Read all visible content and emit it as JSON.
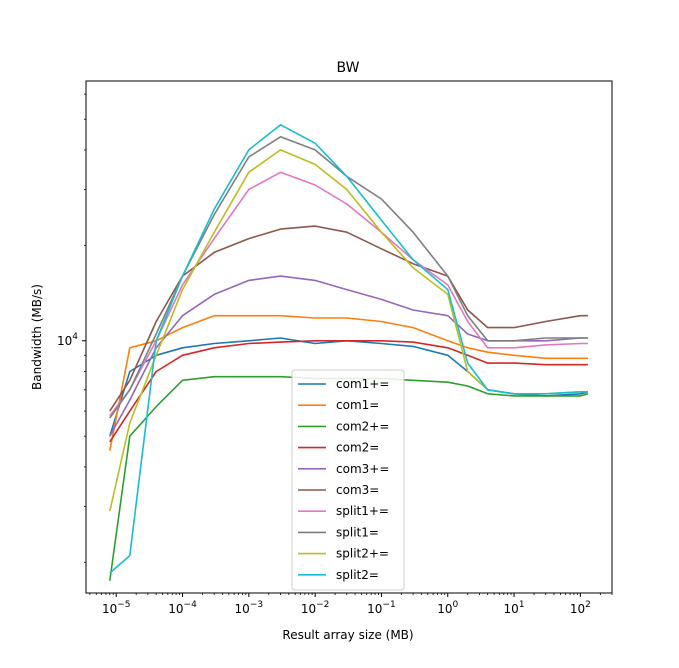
{
  "chart_data": {
    "type": "line",
    "title": "BW",
    "xlabel": "Result array size (MB)",
    "ylabel": "Bandwidth (MB/s)",
    "xscale": "log",
    "yscale": "log",
    "xlim": [
      3.5e-06,
      300
    ],
    "ylim": [
      1600,
      66000
    ],
    "x_ticks": [
      {
        "value": 1e-05,
        "base": "10",
        "exp": "−5"
      },
      {
        "value": 0.0001,
        "base": "10",
        "exp": "−4"
      },
      {
        "value": 0.001,
        "base": "10",
        "exp": "−3"
      },
      {
        "value": 0.01,
        "base": "10",
        "exp": "−2"
      },
      {
        "value": 0.1,
        "base": "10",
        "exp": "−1"
      },
      {
        "value": 1,
        "base": "10",
        "exp": "0"
      },
      {
        "value": 10,
        "base": "10",
        "exp": "1"
      },
      {
        "value": 100,
        "base": "10",
        "exp": "2"
      }
    ],
    "y_ticks": [
      {
        "value": 10000,
        "base": "10",
        "exp": "4"
      }
    ],
    "grid": false,
    "legend_position": "lower-center",
    "series": [
      {
        "name": "com1+=",
        "color": "#1f77b4",
        "x": [
          8e-06,
          1.6e-05,
          4e-05,
          0.0001,
          0.0003,
          0.001,
          0.003,
          0.01,
          0.03,
          0.1,
          0.3,
          1,
          2,
          4,
          10,
          30,
          100,
          130
        ],
        "y": [
          5000,
          8000,
          9000,
          9500,
          9800,
          10000,
          10200,
          9800,
          10000,
          9800,
          9600,
          9000,
          8000,
          7000,
          6800,
          6700,
          6800,
          6900
        ]
      },
      {
        "name": "com1=",
        "color": "#ff7f0e",
        "x": [
          8e-06,
          1.6e-05,
          4e-05,
          0.0001,
          0.0003,
          0.001,
          0.003,
          0.01,
          0.03,
          0.1,
          0.3,
          1,
          2,
          4,
          10,
          30,
          100,
          130
        ],
        "y": [
          4500,
          9500,
          10000,
          11000,
          12000,
          12000,
          12000,
          11800,
          11800,
          11500,
          11000,
          10000,
          9500,
          9200,
          9000,
          8800,
          8800,
          8800
        ]
      },
      {
        "name": "com2+=",
        "color": "#2ca02c",
        "x": [
          8e-06,
          1.6e-05,
          4e-05,
          0.0001,
          0.0003,
          0.001,
          0.003,
          0.01,
          0.03,
          0.1,
          0.3,
          1,
          2,
          4,
          10,
          30,
          100,
          130
        ],
        "y": [
          1750,
          5000,
          6200,
          7500,
          7700,
          7700,
          7700,
          7600,
          7600,
          7600,
          7500,
          7400,
          7200,
          6800,
          6700,
          6700,
          6700,
          6800
        ]
      },
      {
        "name": "com2=",
        "color": "#d62728",
        "x": [
          8e-06,
          1.6e-05,
          4e-05,
          0.0001,
          0.0003,
          0.001,
          0.003,
          0.01,
          0.03,
          0.1,
          0.3,
          1,
          2,
          4,
          10,
          30,
          100,
          130
        ],
        "y": [
          4800,
          6000,
          8000,
          9000,
          9500,
          9800,
          9900,
          10000,
          10000,
          10000,
          9900,
          9500,
          9000,
          8500,
          8500,
          8400,
          8400,
          8400
        ]
      },
      {
        "name": "com3+=",
        "color": "#9467bd",
        "x": [
          8e-06,
          1.6e-05,
          4e-05,
          0.0001,
          0.0003,
          0.001,
          0.003,
          0.01,
          0.03,
          0.1,
          0.3,
          1,
          2,
          4,
          10,
          30,
          100,
          130
        ],
        "y": [
          5000,
          6500,
          9500,
          12000,
          14000,
          15500,
          16000,
          15500,
          14500,
          13500,
          12500,
          12000,
          10500,
          10000,
          10000,
          10000,
          10200,
          10200
        ]
      },
      {
        "name": "com3=",
        "color": "#8c564b",
        "x": [
          8e-06,
          1.6e-05,
          4e-05,
          0.0001,
          0.0003,
          0.001,
          0.003,
          0.01,
          0.03,
          0.1,
          0.3,
          1,
          2,
          4,
          10,
          30,
          100,
          130
        ],
        "y": [
          6000,
          7500,
          11500,
          16000,
          19000,
          21000,
          22500,
          23000,
          22000,
          19500,
          17500,
          16000,
          12500,
          11000,
          11000,
          11500,
          12000,
          12000
        ]
      },
      {
        "name": "split1+=",
        "color": "#e377c2",
        "x": [
          8e-06,
          1.6e-05,
          4e-05,
          0.0001,
          0.0003,
          0.001,
          0.003,
          0.01,
          0.03,
          0.1,
          0.3,
          1,
          2,
          4,
          10,
          30,
          100,
          130
        ],
        "y": [
          5800,
          7000,
          10000,
          15000,
          21000,
          30000,
          34000,
          31000,
          27000,
          22000,
          18000,
          15000,
          11500,
          9500,
          9500,
          9700,
          9800,
          9800
        ]
      },
      {
        "name": "split1=",
        "color": "#7f7f7f",
        "x": [
          8e-06,
          1.6e-05,
          4e-05,
          0.0001,
          0.0003,
          0.001,
          0.003,
          0.01,
          0.03,
          0.1,
          0.3,
          1,
          2,
          4,
          10,
          30,
          100,
          130
        ],
        "y": [
          5700,
          7000,
          10500,
          16000,
          25000,
          38000,
          44000,
          40000,
          33000,
          28000,
          22000,
          16000,
          12000,
          10000,
          10000,
          10200,
          10200,
          10200
        ]
      },
      {
        "name": "split2+=",
        "color": "#bcbd22",
        "x": [
          8e-06,
          1.6e-05,
          4e-05,
          0.0001,
          0.0003,
          0.001,
          0.003,
          0.01,
          0.03,
          0.1,
          0.3,
          1,
          2,
          4,
          10,
          30,
          100,
          130
        ],
        "y": [
          2900,
          5500,
          9000,
          14500,
          22000,
          34000,
          40000,
          36000,
          30000,
          22000,
          17000,
          14000,
          8000,
          7000,
          6800,
          6800,
          6900,
          6900
        ]
      },
      {
        "name": "split2=",
        "color": "#17becf",
        "x": [
          8e-06,
          1.6e-05,
          4e-05,
          0.0001,
          0.0003,
          0.001,
          0.003,
          0.01,
          0.03,
          0.1,
          0.3,
          1,
          2,
          4,
          10,
          30,
          100,
          130
        ],
        "y": [
          1850,
          2100,
          10000,
          16000,
          26000,
          40000,
          48000,
          42000,
          33000,
          24000,
          18000,
          14500,
          8500,
          7000,
          6800,
          6800,
          6900,
          6900
        ]
      }
    ]
  }
}
